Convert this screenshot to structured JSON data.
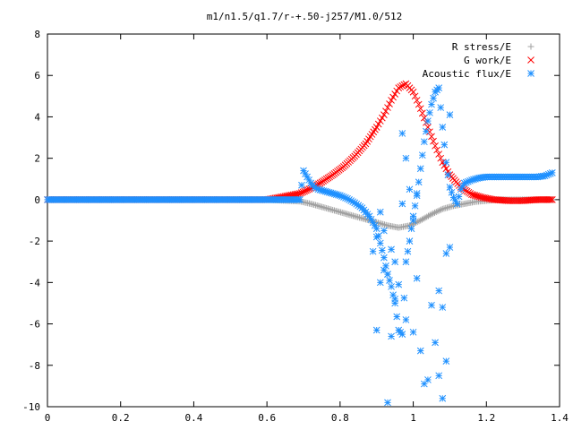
{
  "chart_data": {
    "type": "scatter",
    "title": "m1/n1.5/q1.7/r-+.50-j257/M1.0/512",
    "xlabel": "",
    "ylabel": "",
    "xlim": [
      0,
      1.4
    ],
    "ylim": [
      -10,
      8
    ],
    "xticks": [
      "0",
      "0.2",
      "0.4",
      "0.6",
      "0.8",
      "1",
      "1.2",
      "1.4"
    ],
    "yticks": [
      "8",
      "6",
      "4",
      "2",
      "0",
      "-2",
      "-4",
      "-6",
      "-8",
      "-10"
    ],
    "xtick_values": [
      0,
      0.2,
      0.4,
      0.6,
      0.8,
      1.0,
      1.2,
      1.4
    ],
    "ytick_values": [
      8,
      6,
      4,
      2,
      0,
      -2,
      -4,
      -6,
      -8,
      -10
    ],
    "grid": false,
    "legend_position": "top-right",
    "series": [
      {
        "name": "R stress/E",
        "color": "#a0a0a0",
        "marker": "plus",
        "x": [
          0.0,
          0.1,
          0.2,
          0.3,
          0.4,
          0.5,
          0.6,
          0.69,
          0.72,
          0.75,
          0.78,
          0.81,
          0.84,
          0.87,
          0.9,
          0.93,
          0.96,
          0.99,
          1.02,
          1.05,
          1.08,
          1.11,
          1.14,
          1.17,
          1.2,
          1.23,
          1.26,
          1.29,
          1.32,
          1.35,
          1.38
        ],
        "y": [
          0.0,
          0.0,
          0.0,
          0.0,
          0.0,
          0.0,
          0.0,
          -0.08,
          -0.2,
          -0.35,
          -0.5,
          -0.65,
          -0.8,
          -0.95,
          -1.1,
          -1.25,
          -1.35,
          -1.25,
          -1.0,
          -0.7,
          -0.45,
          -0.3,
          -0.2,
          -0.1,
          -0.05,
          0.0,
          0.0,
          0.0,
          0.0,
          0.0,
          0.0
        ]
      },
      {
        "name": "G work/E",
        "color": "#ff0000",
        "marker": "cross",
        "x": [
          0.0,
          0.1,
          0.2,
          0.3,
          0.4,
          0.5,
          0.6,
          0.69,
          0.72,
          0.75,
          0.78,
          0.81,
          0.84,
          0.87,
          0.9,
          0.92,
          0.94,
          0.96,
          0.98,
          1.0,
          1.02,
          1.04,
          1.06,
          1.08,
          1.1,
          1.13,
          1.16,
          1.19,
          1.22,
          1.26,
          1.3,
          1.34,
          1.38
        ],
        "y": [
          0.0,
          0.0,
          0.0,
          0.0,
          0.0,
          0.0,
          0.0,
          0.3,
          0.55,
          0.85,
          1.2,
          1.6,
          2.1,
          2.7,
          3.5,
          4.1,
          4.8,
          5.4,
          5.6,
          5.2,
          4.4,
          3.5,
          2.6,
          1.8,
          1.2,
          0.6,
          0.25,
          0.1,
          0.0,
          -0.05,
          -0.05,
          0.0,
          0.0
        ]
      },
      {
        "name": "Acoustic flux/E",
        "color": "#1e90ff",
        "marker": "star",
        "x": [
          0.0,
          0.1,
          0.2,
          0.3,
          0.4,
          0.5,
          0.6,
          0.69,
          0.7,
          0.71,
          0.72,
          0.73,
          0.74,
          0.76,
          0.78,
          0.8,
          0.82,
          0.84,
          0.86,
          0.88,
          0.9,
          0.91,
          0.92,
          0.93,
          0.94,
          0.95,
          0.96,
          0.97,
          0.98,
          0.99,
          1.0,
          1.01,
          1.02,
          1.03,
          1.04,
          1.05,
          1.06,
          1.07,
          1.08,
          1.09,
          1.1,
          1.11,
          1.12,
          1.13,
          1.14,
          1.16,
          1.18,
          1.2,
          1.22,
          1.24,
          1.26,
          1.28,
          1.3,
          1.32,
          1.34,
          1.36,
          1.38
        ],
        "y": [
          0.0,
          0.0,
          0.0,
          0.0,
          0.0,
          0.0,
          0.0,
          0.0,
          1.4,
          1.1,
          0.8,
          0.6,
          0.5,
          0.4,
          0.3,
          0.2,
          0.05,
          -0.15,
          -0.4,
          -0.8,
          -1.4,
          -2.1,
          -2.8,
          -3.6,
          -4.2,
          -5.0,
          -6.3,
          -6.5,
          -3.0,
          -2.0,
          -0.8,
          0.2,
          1.5,
          2.8,
          3.8,
          4.6,
          5.2,
          5.4,
          3.5,
          1.8,
          0.6,
          0.1,
          -0.2,
          0.5,
          0.8,
          0.95,
          1.05,
          1.1,
          1.1,
          1.1,
          1.1,
          1.1,
          1.1,
          1.1,
          1.1,
          1.15,
          1.3
        ]
      },
      {
        "name": "Acoustic flux/E",
        "color": "#1e90ff",
        "marker": "star",
        "x": [
          0.89,
          0.9,
          0.9,
          0.91,
          0.91,
          0.92,
          0.92,
          0.93,
          0.93,
          0.94,
          0.94,
          0.95,
          0.95,
          0.96,
          0.97,
          0.97,
          0.98,
          0.98,
          0.99,
          1.0,
          1.0,
          1.01,
          1.01,
          1.02,
          1.03,
          1.04,
          1.05,
          1.06,
          1.07,
          1.07,
          1.08,
          1.08,
          1.09,
          1.09,
          1.1,
          1.1
        ],
        "y": [
          -2.5,
          -1.8,
          -6.3,
          -4.0,
          -0.6,
          -3.4,
          -1.5,
          -9.8,
          -3.6,
          -2.4,
          -6.6,
          -3.0,
          -4.8,
          -4.1,
          3.2,
          -0.2,
          2.0,
          -5.8,
          0.5,
          -6.4,
          -1.0,
          0.3,
          -3.8,
          -7.3,
          -8.9,
          -8.7,
          -5.1,
          -6.9,
          -8.5,
          -4.4,
          -9.6,
          -5.2,
          -7.8,
          -2.6,
          4.1,
          -2.3
        ]
      }
    ]
  }
}
